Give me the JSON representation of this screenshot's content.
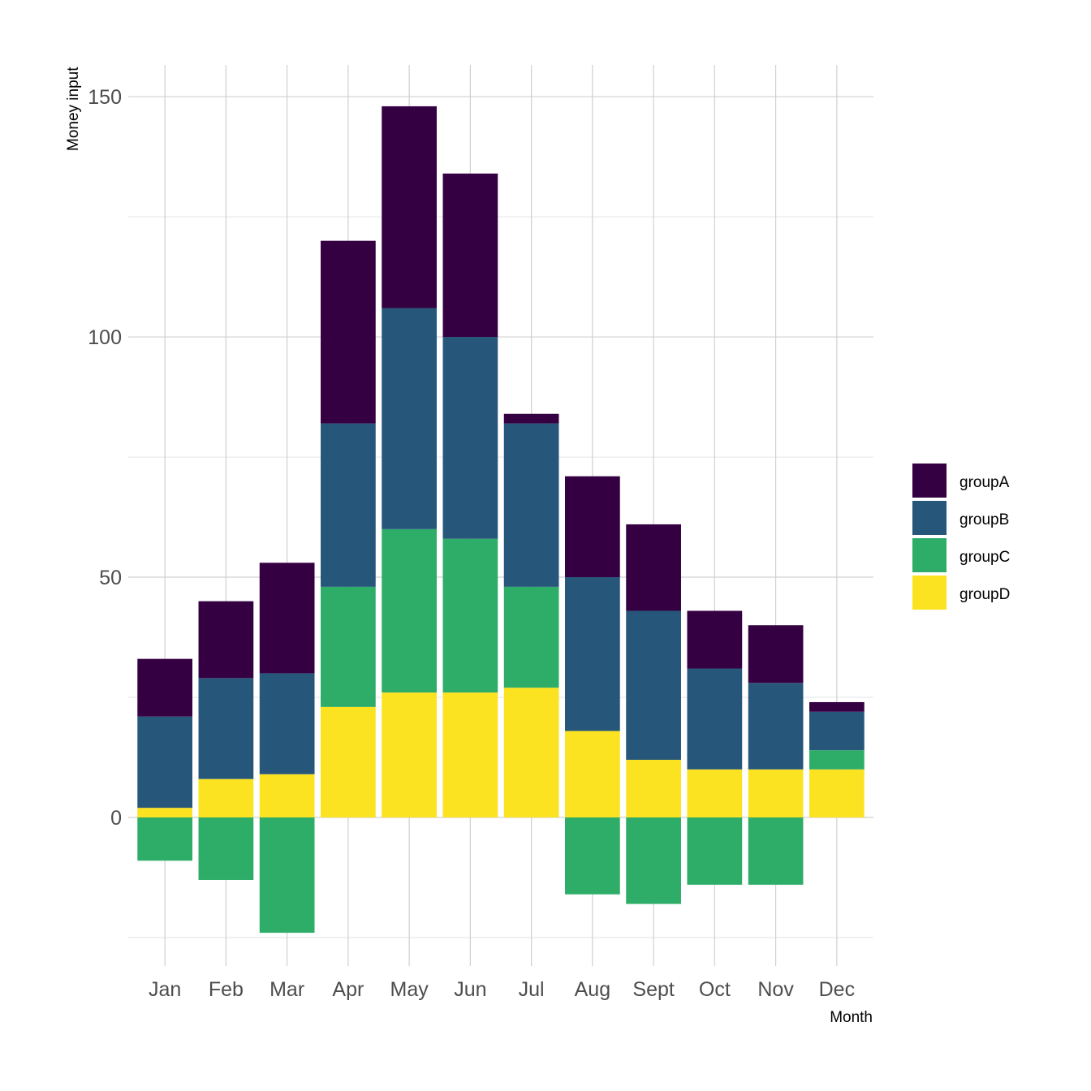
{
  "chart_data": {
    "type": "bar",
    "stacked": true,
    "title": "",
    "xlabel": "Month",
    "ylabel": "Money input",
    "ylim": [
      -32.6,
      156.6
    ],
    "yticks": [
      0,
      50,
      100,
      150
    ],
    "grid": true,
    "legend_position": "right",
    "categories": [
      "Jan",
      "Feb",
      "Mar",
      "Apr",
      "May",
      "Jun",
      "Jul",
      "Aug",
      "Sept",
      "Oct",
      "Nov",
      "Dec"
    ],
    "series": [
      {
        "name": "groupA",
        "color": "#340042",
        "values": [
          12,
          16,
          23,
          38,
          42,
          34,
          2,
          21,
          18,
          12,
          12,
          2
        ]
      },
      {
        "name": "groupB",
        "color": "#26567A",
        "values": [
          19,
          21,
          21,
          34,
          46,
          42,
          34,
          32,
          31,
          21,
          18,
          8
        ]
      },
      {
        "name": "groupC",
        "color": "#2EAD69",
        "values": [
          -9,
          -13,
          -24,
          25,
          34,
          32,
          21,
          -16,
          -18,
          -14,
          -14,
          4
        ]
      },
      {
        "name": "groupD",
        "color": "#FBE321",
        "values": [
          2,
          8,
          9,
          23,
          26,
          26,
          27,
          18,
          12,
          10,
          10,
          10
        ]
      }
    ]
  }
}
